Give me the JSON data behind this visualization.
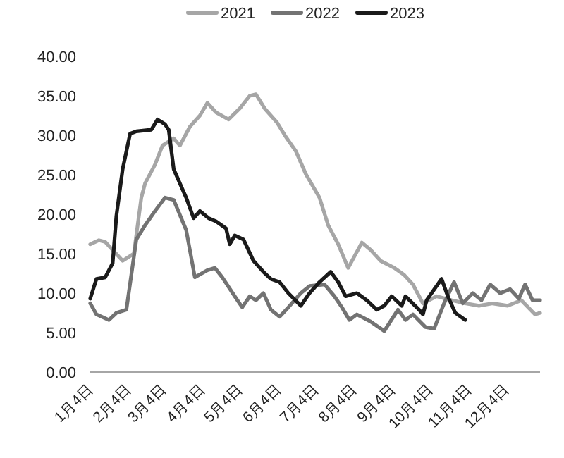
{
  "chart_data": {
    "type": "line",
    "legend": "top",
    "xlim": [
      "--01-04",
      "--12-31"
    ],
    "xticks": [
      {
        "value": "--01-04",
        "label": "1月4日"
      },
      {
        "value": "--02-04",
        "label": "2月4日"
      },
      {
        "value": "--03-04",
        "label": "3月4日"
      },
      {
        "value": "--04-04",
        "label": "4月4日"
      },
      {
        "value": "--05-04",
        "label": "5月4日"
      },
      {
        "value": "--06-04",
        "label": "6月4日"
      },
      {
        "value": "--07-04",
        "label": "7月4日"
      },
      {
        "value": "--08-04",
        "label": "8月4日"
      },
      {
        "value": "--09-04",
        "label": "9月4日"
      },
      {
        "value": "--10-04",
        "label": "10月4日"
      },
      {
        "value": "--11-04",
        "label": "11月4日"
      },
      {
        "value": "--12-04",
        "label": "12月4日"
      }
    ],
    "ylim": [
      0,
      40
    ],
    "yticks": [
      {
        "value": 0,
        "label": "0.00"
      },
      {
        "value": 5,
        "label": "5.00"
      },
      {
        "value": 10,
        "label": "10.00"
      },
      {
        "value": 15,
        "label": "15.00"
      },
      {
        "value": 20,
        "label": "20.00"
      },
      {
        "value": 25,
        "label": "25.00"
      },
      {
        "value": 30,
        "label": "30.00"
      },
      {
        "value": 35,
        "label": "35.00"
      },
      {
        "value": 40,
        "label": "40.00"
      }
    ],
    "grid": false,
    "marker": "none",
    "line_style": "solid",
    "series": [
      {
        "name": "2021",
        "color": "#a6a6a6",
        "x": [
          "--01-04",
          "--01-11",
          "--01-16",
          "--01-30",
          "--02-08",
          "--02-14",
          "--02-17",
          "--02-25",
          "--03-03",
          "--03-12",
          "--03-17",
          "--03-25",
          "--04-02",
          "--04-08",
          "--04-15",
          "--04-25",
          "--05-04",
          "--05-12",
          "--05-17",
          "--05-24",
          "--06-03",
          "--06-10",
          "--06-18",
          "--06-26",
          "--07-07",
          "--07-14",
          "--07-22",
          "--07-30",
          "--08-10",
          "--08-17",
          "--08-25",
          "--09-05",
          "--09-13",
          "--09-20",
          "--09-28",
          "--10-09",
          "--10-21",
          "--11-01",
          "--11-12",
          "--11-23",
          "--12-05",
          "--12-16",
          "--12-27",
          "--12-31"
        ],
        "values": [
          16.2,
          16.7,
          16.5,
          14.1,
          15.0,
          22.1,
          23.9,
          26.3,
          28.7,
          29.6,
          28.7,
          31.1,
          32.5,
          34.1,
          32.9,
          32.0,
          33.4,
          35.0,
          35.2,
          33.4,
          31.6,
          29.8,
          28.0,
          25.1,
          22.1,
          18.6,
          16.2,
          13.2,
          16.4,
          15.5,
          14.1,
          13.2,
          12.3,
          11.1,
          8.7,
          9.6,
          9.1,
          8.7,
          8.4,
          8.7,
          8.4,
          9.1,
          7.3,
          7.5
        ]
      },
      {
        "name": "2022",
        "color": "#737373",
        "x": [
          "--01-04",
          "--01-09",
          "--01-19",
          "--01-25",
          "--02-02",
          "--02-10",
          "--02-17",
          "--02-25",
          "--03-05",
          "--03-12",
          "--03-22",
          "--03-29",
          "--04-08",
          "--04-14",
          "--04-20",
          "--04-30",
          "--05-06",
          "--05-12",
          "--05-17",
          "--05-23",
          "--05-29",
          "--06-05",
          "--06-12",
          "--06-22",
          "--06-29",
          "--07-11",
          "--07-19",
          "--07-25",
          "--07-31",
          "--08-06",
          "--08-17",
          "--08-28",
          "--09-08",
          "--09-14",
          "--09-20",
          "--09-30",
          "--10-07",
          "--10-15",
          "--10-23",
          "--10-30",
          "--11-07",
          "--11-14",
          "--11-21",
          "--11-29",
          "--12-07",
          "--12-14",
          "--12-19",
          "--12-25",
          "--12-31"
        ],
        "values": [
          8.7,
          7.3,
          6.6,
          7.5,
          7.9,
          16.8,
          18.6,
          20.4,
          22.1,
          21.8,
          18.0,
          12.0,
          12.9,
          13.2,
          12.0,
          9.6,
          8.2,
          9.6,
          9.1,
          10.0,
          7.9,
          7.0,
          8.2,
          10.0,
          10.9,
          11.1,
          9.6,
          8.2,
          6.6,
          7.3,
          6.4,
          5.2,
          7.9,
          6.6,
          7.3,
          5.7,
          5.5,
          8.7,
          11.4,
          8.7,
          10.0,
          9.1,
          11.1,
          10.0,
          10.5,
          9.3,
          11.1,
          9.1,
          9.1
        ]
      },
      {
        "name": "2023",
        "color": "#1a1a1a",
        "x": [
          "--01-04",
          "--01-09",
          "--01-16",
          "--01-22",
          "--01-25",
          "--01-30",
          "--02-05",
          "--02-10",
          "--02-22",
          "--02-27",
          "--03-05",
          "--03-08",
          "--03-12",
          "--03-22",
          "--03-28",
          "--04-02",
          "--04-09",
          "--04-15",
          "--04-23",
          "--04-26",
          "--04-30",
          "--05-07",
          "--05-15",
          "--05-23",
          "--05-29",
          "--06-05",
          "--06-12",
          "--06-22",
          "--06-29",
          "--07-07",
          "--07-16",
          "--07-22",
          "--07-28",
          "--08-06",
          "--08-14",
          "--08-22",
          "--08-28",
          "--09-03",
          "--09-11",
          "--09-14",
          "--09-25",
          "--09-28",
          "--10-01",
          "--10-13",
          "--10-18",
          "--10-24",
          "--11-01"
        ],
        "values": [
          9.3,
          11.8,
          12.0,
          13.8,
          19.8,
          25.7,
          30.2,
          30.5,
          30.7,
          32.0,
          31.4,
          30.7,
          25.7,
          22.1,
          19.5,
          20.4,
          19.5,
          19.1,
          18.2,
          16.2,
          17.3,
          16.8,
          14.1,
          12.7,
          11.8,
          11.4,
          10.0,
          8.4,
          10.0,
          11.4,
          12.7,
          11.4,
          9.6,
          10.0,
          9.1,
          7.9,
          8.4,
          9.6,
          8.4,
          9.6,
          7.9,
          7.3,
          9.1,
          11.8,
          9.6,
          7.5,
          6.6
        ]
      }
    ]
  }
}
